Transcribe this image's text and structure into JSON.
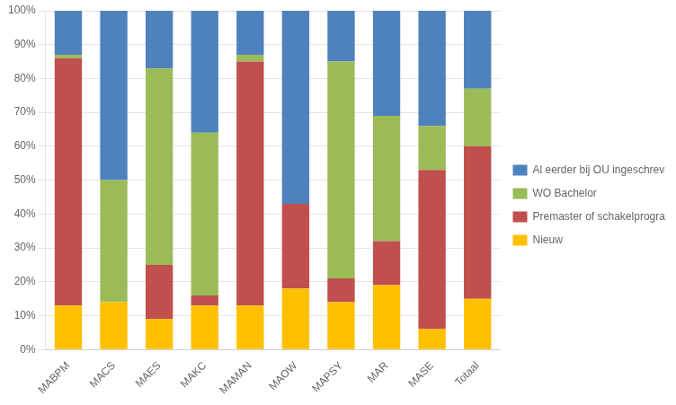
{
  "chart_data": {
    "type": "bar",
    "stacked": true,
    "categories": [
      "MABPM",
      "MACS",
      "MAES",
      "MAKC",
      "MAMAN",
      "MAOW",
      "MAPSY",
      "MAR",
      "MASE",
      "Totaal"
    ],
    "series": [
      {
        "name": "Nieuw",
        "color": "#ffc000",
        "values": [
          13,
          14,
          9,
          13,
          13,
          18,
          14,
          19,
          6,
          15
        ]
      },
      {
        "name": "Premaster of schakelprogramma",
        "color": "#c0504d",
        "values": [
          73,
          0,
          16,
          3,
          72,
          25,
          7,
          13,
          47,
          45
        ]
      },
      {
        "name": "WO Bachelor",
        "color": "#9bbb59",
        "values": [
          1,
          36,
          58,
          48,
          2,
          0,
          64,
          37,
          13,
          17
        ]
      },
      {
        "name": "Al eerder bij OU ingeschreven",
        "color": "#4f81bd",
        "values": [
          13,
          50,
          17,
          36,
          13,
          57,
          15,
          31,
          34,
          23
        ]
      }
    ],
    "ylim": [
      0,
      100
    ],
    "yticks": [
      {
        "value": 0,
        "label": "0%"
      },
      {
        "value": 10,
        "label": "10%"
      },
      {
        "value": 20,
        "label": "20%"
      },
      {
        "value": 30,
        "label": "30%"
      },
      {
        "value": 40,
        "label": "40%"
      },
      {
        "value": 50,
        "label": "50%"
      },
      {
        "value": 60,
        "label": "60%"
      },
      {
        "value": 70,
        "label": "70%"
      },
      {
        "value": 80,
        "label": "80%"
      },
      {
        "value": 90,
        "label": "90%"
      },
      {
        "value": 100,
        "label": "100%"
      }
    ],
    "grid": true,
    "legend": "right"
  }
}
